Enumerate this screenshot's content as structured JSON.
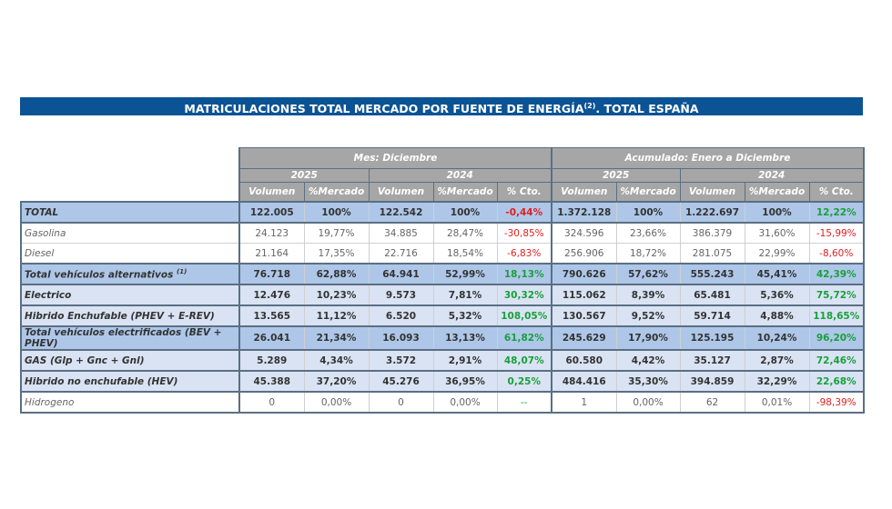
{
  "title": {
    "main": "MATRICULACIONES TOTAL MERCADO POR FUENTE DE ENERGÍA",
    "sup": "(2)",
    "suffix": ". TOTAL ESPAÑA"
  },
  "headers": {
    "month": "Mes: Diciembre",
    "ytd": "Acumulado: Enero a Diciembre",
    "y2025": "2025",
    "y2024": "2024",
    "vol": "Volumen",
    "mkt": "%Mercado",
    "cto": "% Cto."
  },
  "colors": {
    "title_bar": "#0b5394",
    "header": "#a6a6a6",
    "total_row": "#aec7e8",
    "sub_row": "#dae3f3",
    "positive": "#1a9f3c",
    "negative": "#e02020"
  },
  "rows": [
    {
      "label": "TOTAL",
      "style": "dark",
      "values": [
        "122.005",
        "100%",
        "122.542",
        "100%",
        "-0,44%",
        "1.372.128",
        "100%",
        "1.222.697",
        "100%",
        "12,22%"
      ]
    },
    {
      "label": "Gasolina",
      "style": "plain",
      "values": [
        "24.123",
        "19,77%",
        "34.885",
        "28,47%",
        "-30,85%",
        "324.596",
        "23,66%",
        "386.379",
        "31,60%",
        "-15,99%"
      ]
    },
    {
      "label": "Diesel",
      "style": "plain",
      "values": [
        "21.164",
        "17,35%",
        "22.716",
        "18,54%",
        "-6,83%",
        "256.906",
        "18,72%",
        "281.075",
        "22,99%",
        "-8,60%"
      ]
    },
    {
      "label": "Total vehículos alternativos",
      "sup": "(1)",
      "style": "dark",
      "values": [
        "76.718",
        "62,88%",
        "64.941",
        "52,99%",
        "18,13%",
        "790.626",
        "57,62%",
        "555.243",
        "45,41%",
        "42,39%"
      ]
    },
    {
      "label": "Electrico",
      "style": "light",
      "values": [
        "12.476",
        "10,23%",
        "9.573",
        "7,81%",
        "30,32%",
        "115.062",
        "8,39%",
        "65.481",
        "5,36%",
        "75,72%"
      ]
    },
    {
      "label": "Hibrido Enchufable (PHEV + E-REV)",
      "style": "light",
      "values": [
        "13.565",
        "11,12%",
        "6.520",
        "5,32%",
        "108,05%",
        "130.567",
        "9,52%",
        "59.714",
        "4,88%",
        "118,65%"
      ]
    },
    {
      "label": "Total vehículos electrificados (BEV + PHEV)",
      "style": "dark",
      "values": [
        "26.041",
        "21,34%",
        "16.093",
        "13,13%",
        "61,82%",
        "245.629",
        "17,90%",
        "125.195",
        "10,24%",
        "96,20%"
      ]
    },
    {
      "label": "GAS (Glp + Gnc + Gnl)",
      "style": "light",
      "values": [
        "5.289",
        "4,34%",
        "3.572",
        "2,91%",
        "48,07%",
        "60.580",
        "4,42%",
        "35.127",
        "2,87%",
        "72,46%"
      ]
    },
    {
      "label": "Hibrido no enchufable (HEV)",
      "style": "light",
      "values": [
        "45.388",
        "37,20%",
        "45.276",
        "36,95%",
        "0,25%",
        "484.416",
        "35,30%",
        "394.859",
        "32,29%",
        "22,68%"
      ]
    },
    {
      "label": "Hidrogeno",
      "style": "plain",
      "values": [
        "0",
        "0,00%",
        "0",
        "0,00%",
        "--",
        "1",
        "0,00%",
        "62",
        "0,01%",
        "-98,39%"
      ]
    }
  ]
}
